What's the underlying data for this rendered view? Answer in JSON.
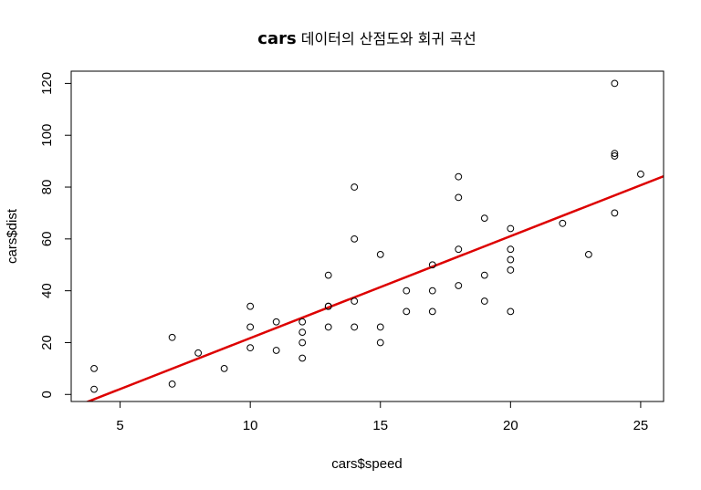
{
  "chart_data": {
    "type": "scatter",
    "title_bold": "cars",
    "title_rest": " 데이터의 산점도와 회귀 곡선",
    "xlabel": "cars$speed",
    "ylabel": "cars$dist",
    "xlim": [
      3.12,
      25.88
    ],
    "ylim": [
      -2.72,
      124.72
    ],
    "xticks": [
      5,
      10,
      15,
      20,
      25
    ],
    "yticks": [
      0,
      20,
      40,
      60,
      80,
      100,
      120
    ],
    "x": [
      4,
      4,
      7,
      7,
      8,
      9,
      10,
      10,
      10,
      11,
      11,
      12,
      12,
      12,
      12,
      13,
      13,
      13,
      13,
      14,
      14,
      14,
      14,
      15,
      15,
      15,
      16,
      16,
      17,
      17,
      17,
      18,
      18,
      18,
      18,
      19,
      19,
      19,
      20,
      20,
      20,
      20,
      20,
      22,
      23,
      24,
      24,
      24,
      24,
      25
    ],
    "y": [
      2,
      10,
      4,
      22,
      16,
      10,
      18,
      26,
      34,
      17,
      28,
      14,
      20,
      24,
      28,
      26,
      34,
      34,
      46,
      26,
      36,
      60,
      80,
      20,
      26,
      54,
      32,
      40,
      32,
      40,
      50,
      42,
      56,
      76,
      84,
      36,
      46,
      68,
      32,
      48,
      52,
      56,
      64,
      66,
      54,
      70,
      92,
      93,
      120,
      85
    ],
    "regression": {
      "intercept": -17.5791,
      "slope": 3.9324,
      "color": "#dd0000"
    },
    "point_color": "#000000"
  }
}
